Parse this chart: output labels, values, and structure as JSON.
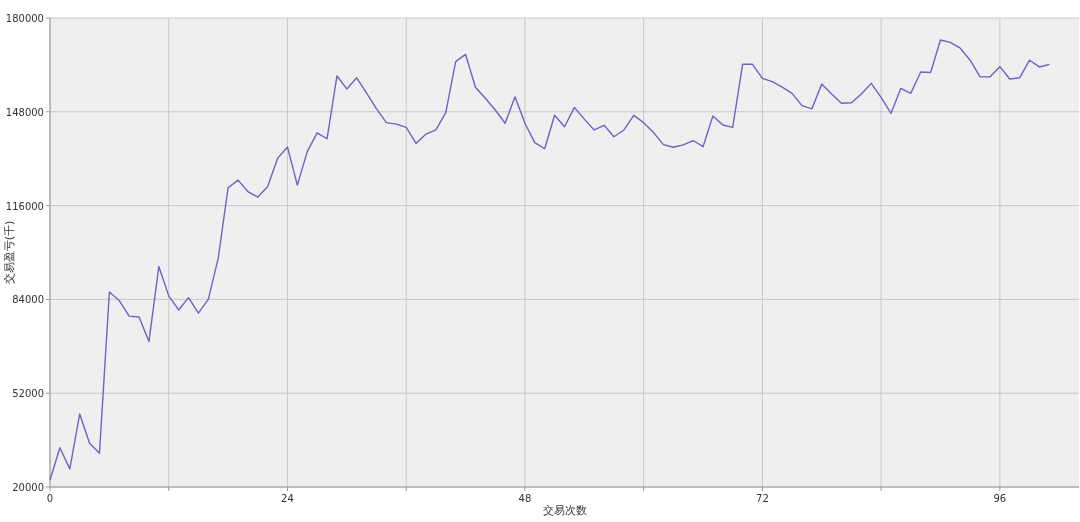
{
  "chart_data": {
    "type": "line",
    "xlabel": "交易次数",
    "ylabel": "交易盈亏(千)",
    "x": [
      0,
      1,
      2,
      3,
      4,
      5,
      6,
      7,
      8,
      9,
      10,
      11,
      12,
      13,
      14,
      15,
      16,
      17,
      18,
      19,
      20,
      21,
      22,
      23,
      24,
      25,
      26,
      27,
      28,
      29,
      30,
      31,
      32,
      33,
      34,
      35,
      36,
      37,
      38,
      39,
      40,
      41,
      42,
      43,
      44,
      45,
      46,
      47,
      48,
      49,
      50,
      51,
      52,
      53,
      54,
      55,
      56,
      57,
      58,
      59,
      60,
      61,
      62,
      63,
      64,
      65,
      66,
      67,
      68,
      69,
      70,
      71,
      72,
      73,
      74,
      75,
      76,
      77,
      78,
      79,
      80,
      81,
      82,
      83,
      84,
      85,
      86,
      87,
      88,
      89,
      90,
      91,
      92,
      93,
      94,
      95,
      96,
      97,
      98,
      99,
      100,
      101
    ],
    "series": [
      {
        "color": "#6c63c4",
        "values": [
          22400,
          33400,
          26200,
          44900,
          34900,
          31500,
          86500,
          83600,
          78300,
          78000,
          69600,
          95200,
          85200,
          80400,
          84600,
          79300,
          84000,
          98000,
          122100,
          124700,
          120800,
          118900,
          122500,
          132100,
          136000,
          123000,
          134400,
          140800,
          138800,
          160200,
          155800,
          159600,
          154400,
          149000,
          144300,
          143800,
          142700,
          137200,
          140400,
          141800,
          147700,
          165100,
          167600,
          156400,
          152600,
          148600,
          144100,
          153100,
          144100,
          137500,
          135400,
          146800,
          142900,
          149500,
          145500,
          141800,
          143400,
          139500,
          141800,
          146800,
          144300,
          140900,
          136800,
          135900,
          136700,
          138200,
          136100,
          146600,
          143500,
          142700,
          164200,
          164200,
          159400,
          158300,
          156400,
          154300,
          150100,
          149000,
          157500,
          154100,
          150900,
          151100,
          154100,
          157700,
          152900,
          147500,
          156000,
          154300,
          161600,
          161400,
          172500,
          171700,
          169700,
          165600,
          159900,
          159900,
          163400,
          159200,
          159600,
          165600,
          163300,
          164200
        ]
      }
    ],
    "xlim": [
      0,
      104
    ],
    "ylim": [
      20000,
      180000
    ],
    "xticks": [
      0,
      {
        "value": 12,
        "label": null
      },
      24,
      {
        "value": 36,
        "label": null
      },
      48,
      {
        "value": 60,
        "label": null
      },
      72,
      {
        "value": 84,
        "label": null
      },
      96
    ],
    "yticks": [
      20000,
      52000,
      84000,
      116000,
      148000,
      180000
    ],
    "grid": true,
    "marker": "none",
    "line_style": "solid"
  }
}
